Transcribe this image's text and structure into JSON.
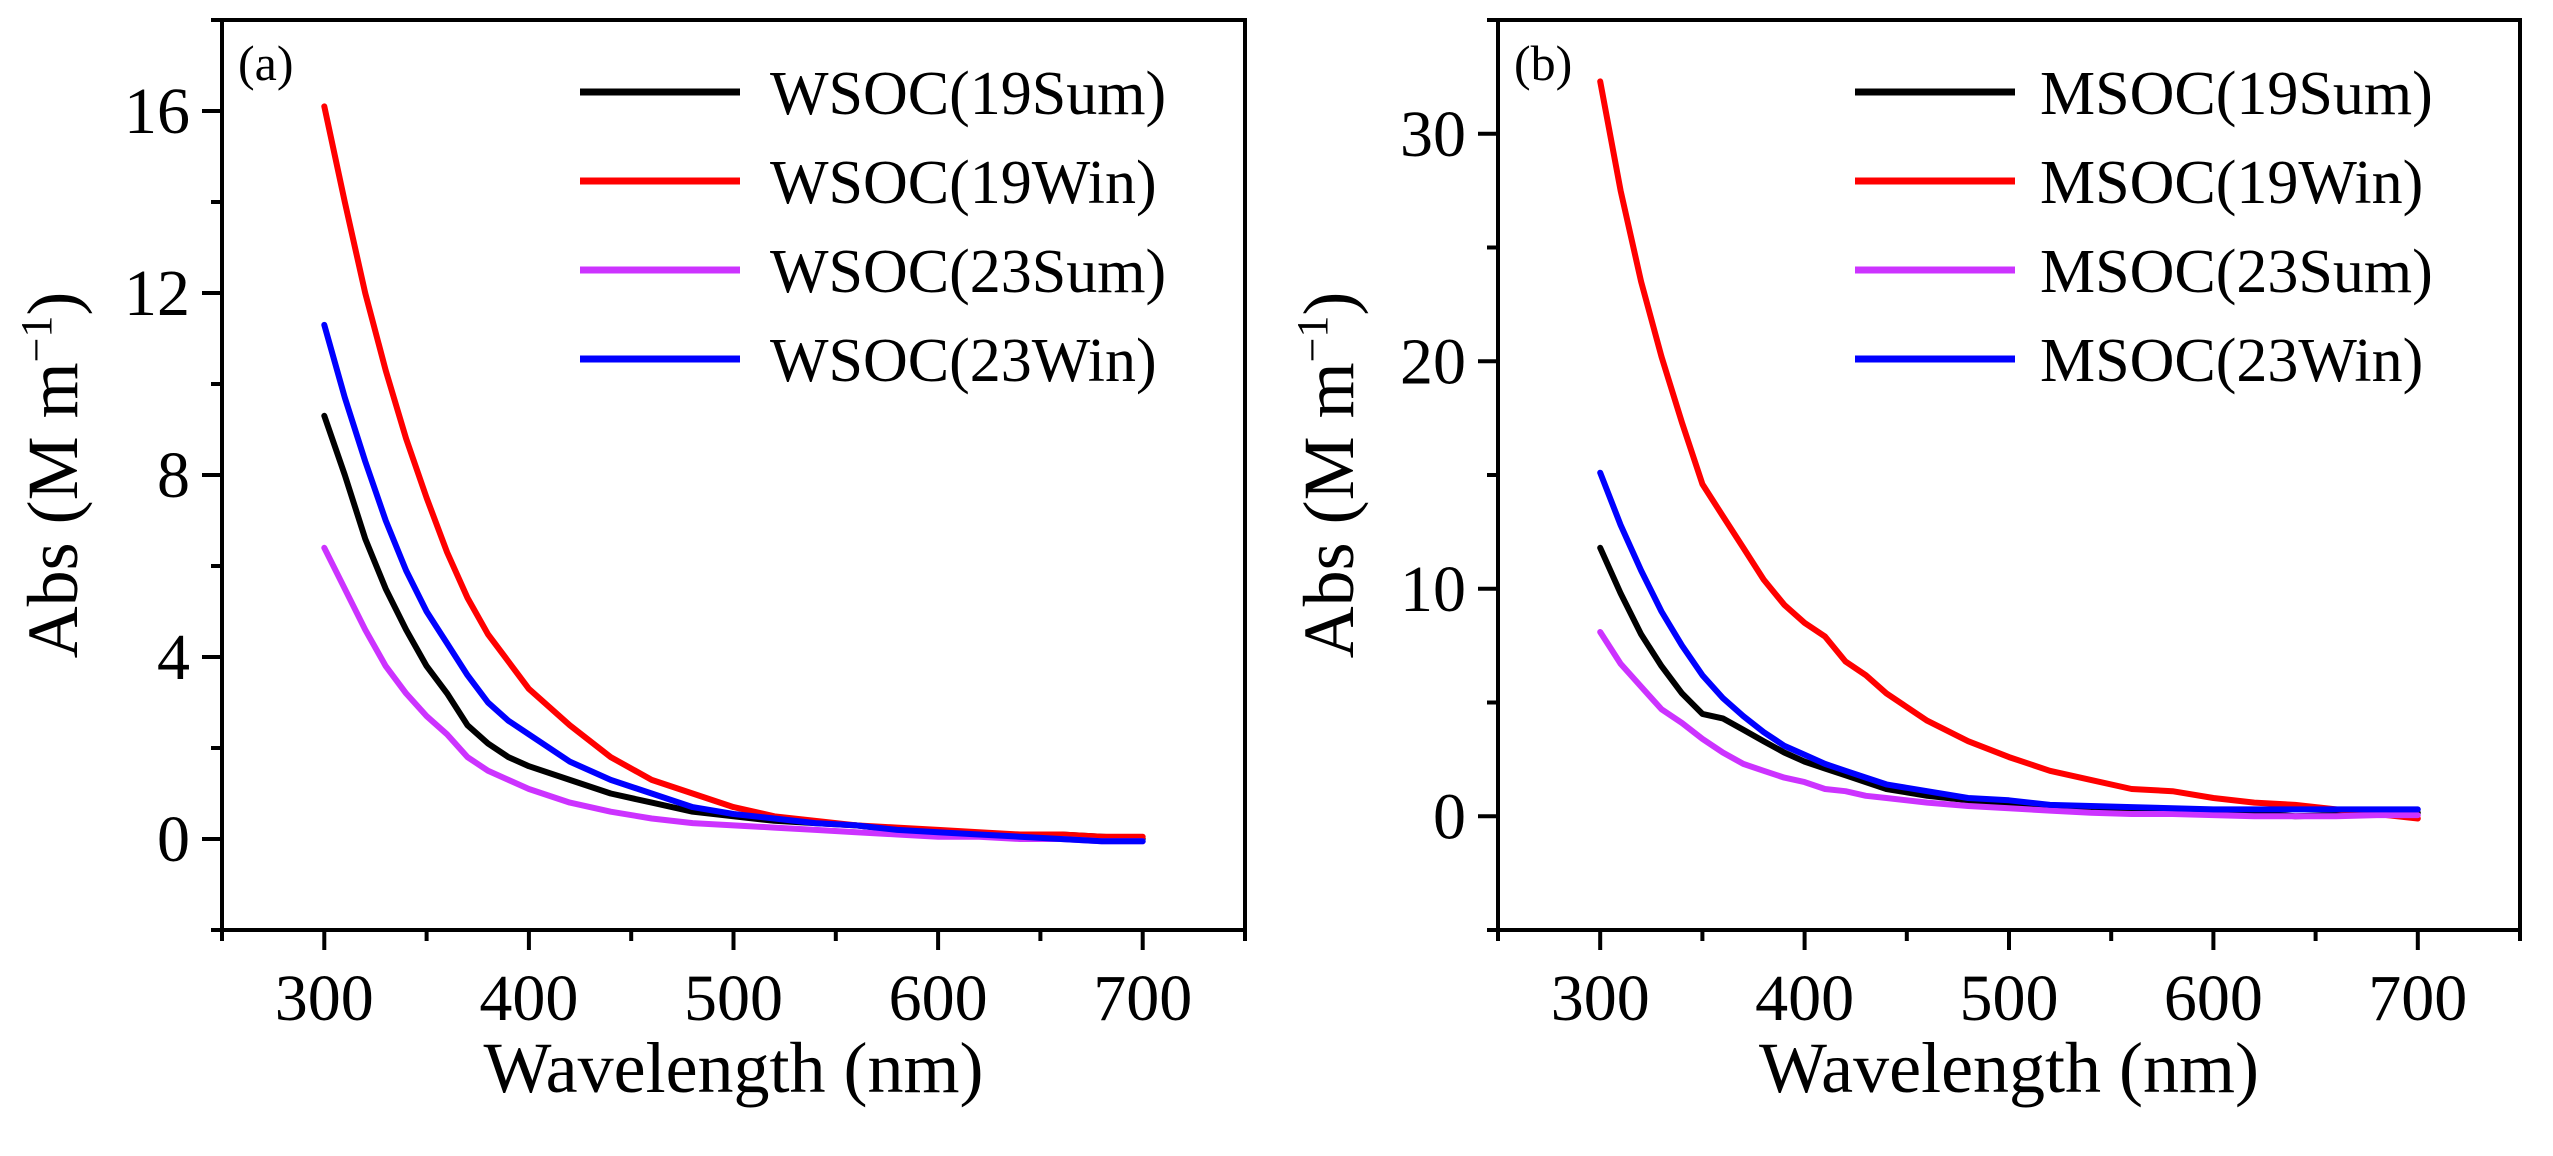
{
  "chart_data": [
    {
      "type": "line",
      "panel_label": "(a)",
      "xlabel": "Wavelength (nm)",
      "ylabel": "Abs (M m",
      "ylabel_sup": "−1",
      "ylabel_tail": ")",
      "xlim": [
        250,
        750
      ],
      "ylim": [
        -2,
        18
      ],
      "xticks": [
        300,
        400,
        500,
        600,
        700
      ],
      "xtick_labels": [
        "300",
        "400",
        "500",
        "600",
        "700"
      ],
      "yticks": [
        0,
        4,
        8,
        12,
        16
      ],
      "ytick_labels": [
        "0",
        "4",
        "8",
        "12",
        "16"
      ],
      "legend_position": "top-right",
      "x": [
        300,
        310,
        320,
        330,
        340,
        350,
        360,
        370,
        380,
        390,
        400,
        420,
        440,
        460,
        480,
        500,
        520,
        540,
        560,
        580,
        600,
        620,
        640,
        660,
        680,
        700
      ],
      "series": [
        {
          "name": "WSOC(19Sum)",
          "color": "#000000",
          "values": [
            9.3,
            8.0,
            6.6,
            5.5,
            4.6,
            3.8,
            3.2,
            2.5,
            2.1,
            1.8,
            1.6,
            1.3,
            1.0,
            0.8,
            0.6,
            0.5,
            0.4,
            0.35,
            0.3,
            0.2,
            0.15,
            0.1,
            0.1,
            0.1,
            0.05,
            0.0
          ]
        },
        {
          "name": "WSOC(19Win)",
          "color": "#ff0000",
          "values": [
            16.1,
            14.0,
            12.0,
            10.3,
            8.8,
            7.5,
            6.3,
            5.3,
            4.5,
            3.9,
            3.3,
            2.5,
            1.8,
            1.3,
            1.0,
            0.7,
            0.5,
            0.4,
            0.3,
            0.25,
            0.2,
            0.15,
            0.1,
            0.1,
            0.05,
            0.05
          ]
        },
        {
          "name": "WSOC(23Sum)",
          "color": "#cc33ff",
          "values": [
            6.4,
            5.5,
            4.6,
            3.8,
            3.2,
            2.7,
            2.3,
            1.8,
            1.5,
            1.3,
            1.1,
            0.8,
            0.6,
            0.45,
            0.35,
            0.3,
            0.25,
            0.2,
            0.15,
            0.1,
            0.05,
            0.05,
            0.0,
            0.0,
            -0.05,
            -0.05
          ]
        },
        {
          "name": "WSOC(23Win)",
          "color": "#0000ff",
          "values": [
            11.3,
            9.7,
            8.3,
            7.0,
            5.9,
            5.0,
            4.3,
            3.6,
            3.0,
            2.6,
            2.3,
            1.7,
            1.3,
            1.0,
            0.7,
            0.55,
            0.45,
            0.35,
            0.3,
            0.2,
            0.15,
            0.1,
            0.05,
            0.0,
            -0.05,
            -0.05
          ]
        }
      ]
    },
    {
      "type": "line",
      "panel_label": "(b)",
      "xlabel": "Wavelength (nm)",
      "ylabel": "Abs (M m",
      "ylabel_sup": "−1",
      "ylabel_tail": ")",
      "xlim": [
        250,
        750
      ],
      "ylim": [
        -5,
        35
      ],
      "xticks": [
        300,
        400,
        500,
        600,
        700
      ],
      "xtick_labels": [
        "300",
        "400",
        "500",
        "600",
        "700"
      ],
      "yticks": [
        0,
        10,
        20,
        30
      ],
      "ytick_labels": [
        "0",
        "10",
        "20",
        "30"
      ],
      "legend_position": "top-right",
      "x": [
        300,
        310,
        320,
        330,
        340,
        350,
        360,
        370,
        380,
        390,
        400,
        410,
        420,
        430,
        440,
        460,
        480,
        500,
        520,
        540,
        560,
        580,
        600,
        620,
        640,
        660,
        680,
        700
      ],
      "series": [
        {
          "name": "MSOC(19Sum)",
          "color": "#000000",
          "values": [
            11.8,
            9.8,
            8.0,
            6.6,
            5.4,
            4.5,
            4.3,
            3.8,
            3.3,
            2.8,
            2.4,
            2.1,
            1.8,
            1.5,
            1.2,
            0.9,
            0.7,
            0.5,
            0.4,
            0.35,
            0.3,
            0.25,
            0.2,
            0.15,
            0.0,
            0.05,
            0.1,
            0.15
          ]
        },
        {
          "name": "MSOC(19Win)",
          "color": "#ff0000",
          "values": [
            32.3,
            27.5,
            23.5,
            20.2,
            17.3,
            14.6,
            13.2,
            11.8,
            10.4,
            9.3,
            8.5,
            7.9,
            6.8,
            6.2,
            5.4,
            4.2,
            3.3,
            2.6,
            2.0,
            1.6,
            1.2,
            1.1,
            0.8,
            0.6,
            0.5,
            0.3,
            0.1,
            -0.1
          ]
        },
        {
          "name": "MSOC(23Sum)",
          "color": "#cc33ff",
          "values": [
            8.1,
            6.7,
            5.7,
            4.7,
            4.1,
            3.4,
            2.8,
            2.3,
            2.0,
            1.7,
            1.5,
            1.2,
            1.1,
            0.9,
            0.8,
            0.6,
            0.45,
            0.35,
            0.25,
            0.15,
            0.1,
            0.1,
            0.05,
            0.0,
            0.0,
            0.0,
            0.05,
            0.05
          ]
        },
        {
          "name": "MSOC(23Win)",
          "color": "#0000ff",
          "values": [
            15.1,
            12.8,
            10.8,
            9.0,
            7.5,
            6.2,
            5.2,
            4.4,
            3.7,
            3.1,
            2.7,
            2.3,
            2.0,
            1.7,
            1.4,
            1.1,
            0.8,
            0.7,
            0.5,
            0.45,
            0.4,
            0.35,
            0.3,
            0.3,
            0.3,
            0.3,
            0.3,
            0.3
          ]
        }
      ]
    }
  ]
}
